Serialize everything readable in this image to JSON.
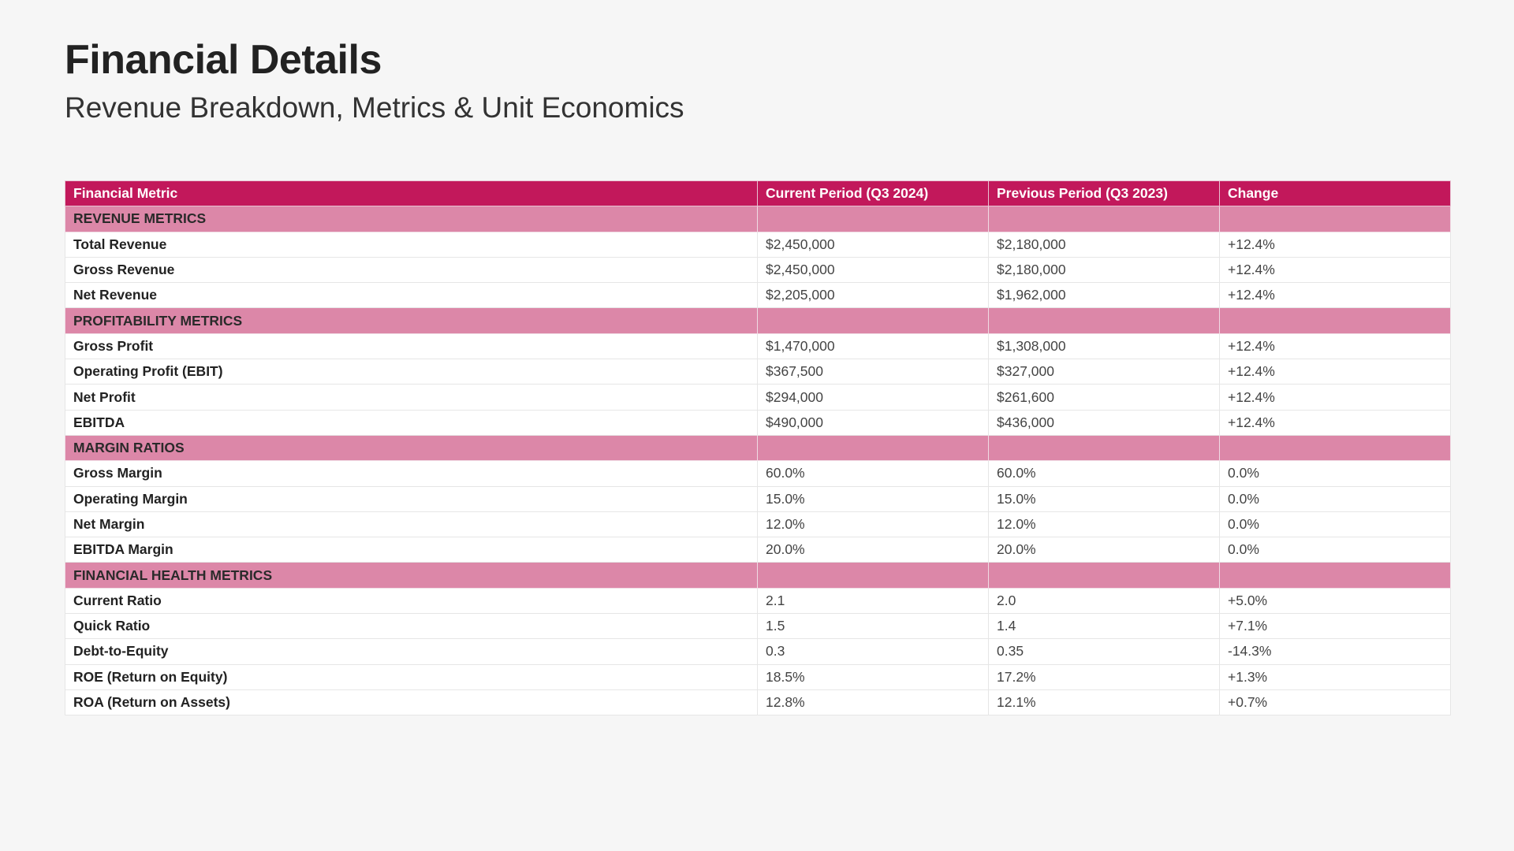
{
  "header": {
    "title": "Financial Details",
    "subtitle": "Revenue Breakdown, Metrics & Unit Economics"
  },
  "table": {
    "columns": [
      "Financial Metric",
      "Current Period (Q3 2024)",
      "Previous Period (Q3 2023)",
      "Change"
    ],
    "sections": [
      {
        "label": "REVENUE METRICS",
        "rows": [
          [
            "Total Revenue",
            "$2,450,000",
            "$2,180,000",
            "+12.4%"
          ],
          [
            "Gross Revenue",
            "$2,450,000",
            "$2,180,000",
            "+12.4%"
          ],
          [
            "Net Revenue",
            "$2,205,000",
            "$1,962,000",
            "+12.4%"
          ]
        ]
      },
      {
        "label": "PROFITABILITY METRICS",
        "rows": [
          [
            "Gross Profit",
            "$1,470,000",
            "$1,308,000",
            "+12.4%"
          ],
          [
            "Operating Profit (EBIT)",
            "$367,500",
            "$327,000",
            "+12.4%"
          ],
          [
            "Net Profit",
            "$294,000",
            "$261,600",
            "+12.4%"
          ],
          [
            "EBITDA",
            "$490,000",
            "$436,000",
            "+12.4%"
          ]
        ]
      },
      {
        "label": "MARGIN RATIOS",
        "rows": [
          [
            "Gross Margin",
            "60.0%",
            "60.0%",
            "0.0%"
          ],
          [
            "Operating Margin",
            "15.0%",
            "15.0%",
            "0.0%"
          ],
          [
            "Net Margin",
            "12.0%",
            "12.0%",
            "0.0%"
          ],
          [
            "EBITDA Margin",
            "20.0%",
            "20.0%",
            "0.0%"
          ]
        ]
      },
      {
        "label": "FINANCIAL HEALTH METRICS",
        "rows": [
          [
            "Current Ratio",
            "2.1",
            "2.0",
            "+5.0%"
          ],
          [
            "Quick Ratio",
            "1.5",
            "1.4",
            "+7.1%"
          ],
          [
            "Debt-to-Equity",
            "0.3",
            "0.35",
            "-14.3%"
          ],
          [
            "ROE (Return on Equity)",
            "18.5%",
            "17.2%",
            "+1.3%"
          ],
          [
            "ROA (Return on Assets)",
            "12.8%",
            "12.1%",
            "+0.7%"
          ]
        ]
      }
    ]
  },
  "colors": {
    "header_bg": "#c2185b",
    "section_bg": "#dc87a8",
    "page_bg": "#f6f6f6"
  }
}
